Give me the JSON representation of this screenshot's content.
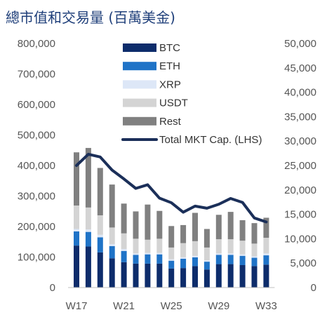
{
  "chart_data": {
    "type": "bar",
    "title": "總市值和交易量 (百萬美金)",
    "categories": [
      "W17",
      "W18",
      "W19",
      "W20",
      "W21",
      "W22",
      "W23",
      "W24",
      "W25",
      "W26",
      "W27",
      "W28",
      "W29",
      "W30",
      "W31",
      "W32",
      "W33"
    ],
    "x_tick_labels": [
      "W17",
      "W21",
      "W25",
      "W29",
      "W33"
    ],
    "left_axis": {
      "ylim": [
        0,
        800000
      ],
      "ticks": [
        "0",
        "100,000",
        "200,000",
        "300,000",
        "400,000",
        "500,000",
        "600,000",
        "700,000",
        "800,000"
      ],
      "tick_values": [
        0,
        100000,
        200000,
        300000,
        400000,
        500000,
        600000,
        700000,
        800000
      ]
    },
    "right_axis": {
      "ylim": [
        0,
        50000
      ],
      "ticks": [
        "0",
        "5,000",
        "10,000",
        "15,000",
        "20,000",
        "25,000",
        "30,000",
        "35,000",
        "40,000",
        "45,000",
        "50,000"
      ],
      "tick_values": [
        0,
        5000,
        10000,
        15000,
        20000,
        25000,
        30000,
        35000,
        40000,
        45000,
        50000
      ]
    },
    "stacked_series": [
      {
        "name": "BTC",
        "color": "#0d2c6b",
        "axis": "right",
        "values": [
          8600,
          8400,
          7200,
          6000,
          5200,
          4900,
          4900,
          4900,
          3900,
          4000,
          4400,
          3700,
          4800,
          4800,
          4600,
          4400,
          4700
        ]
      },
      {
        "name": "ETH",
        "color": "#1f73c7",
        "axis": "right",
        "values": [
          2900,
          3000,
          3100,
          2500,
          2300,
          1800,
          1900,
          1900,
          1600,
          1900,
          1800,
          1600,
          1900,
          1900,
          1900,
          1700,
          1900
        ]
      },
      {
        "name": "XRP",
        "color": "#dde7f7",
        "axis": "right",
        "values": [
          500,
          500,
          500,
          400,
          400,
          300,
          300,
          300,
          300,
          300,
          300,
          300,
          300,
          300,
          300,
          300,
          400
        ]
      },
      {
        "name": "USDT",
        "color": "#d4d4d4",
        "axis": "right",
        "values": [
          4800,
          4500,
          4000,
          3400,
          3200,
          3000,
          2700,
          2900,
          2400,
          2900,
          3000,
          2600,
          2900,
          2900,
          2800,
          2600,
          3200
        ]
      },
      {
        "name": "Rest",
        "color": "#808080",
        "axis": "right",
        "values": [
          10900,
          12200,
          9700,
          8800,
          6100,
          5600,
          7200,
          5700,
          4400,
          3700,
          5800,
          3800,
          5000,
          5600,
          4200,
          4200,
          4100
        ]
      }
    ],
    "line_series": {
      "name": "Total MKT Cap. (LHS)",
      "color": "#1b2f59",
      "axis": "left",
      "values": [
        400000,
        437000,
        428000,
        385000,
        356000,
        325000,
        337000,
        293000,
        278000,
        247000,
        267000,
        260000,
        273000,
        292000,
        279000,
        228000,
        215000
      ]
    },
    "legend": {
      "position": "top-center",
      "entries": [
        "BTC",
        "ETH",
        "XRP",
        "USDT",
        "Rest",
        "Total MKT Cap. (LHS)"
      ]
    },
    "grid": false
  }
}
